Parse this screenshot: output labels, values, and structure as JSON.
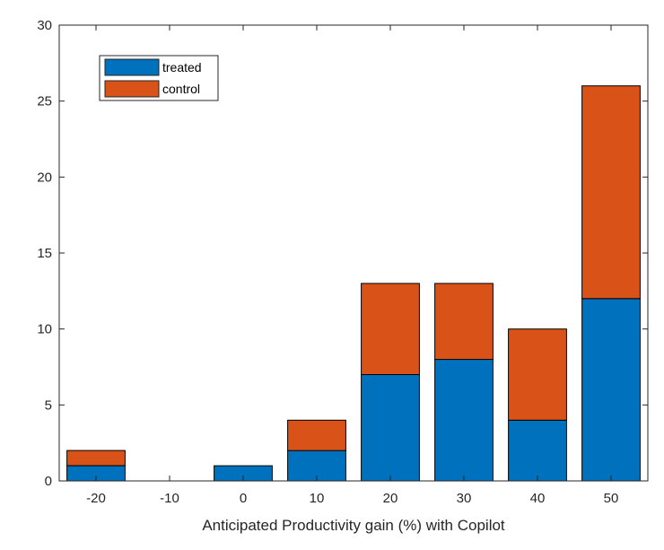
{
  "chart_data": {
    "type": "bar",
    "stacked": true,
    "title": "",
    "xlabel": "Anticipated Productivity gain (%) with Copilot",
    "ylabel": "",
    "categories": [
      "-20",
      "-10",
      "0",
      "10",
      "20",
      "30",
      "40",
      "50"
    ],
    "series": [
      {
        "name": "treated",
        "color": "#0072BD",
        "values": [
          1,
          0,
          1,
          2,
          7,
          8,
          4,
          12
        ]
      },
      {
        "name": "control",
        "color": "#D95319",
        "values": [
          1,
          0,
          0,
          2,
          6,
          5,
          6,
          14
        ]
      }
    ],
    "ylim": [
      0,
      30
    ],
    "yticks": [
      0,
      5,
      10,
      15,
      20,
      25,
      30
    ],
    "grid": false,
    "legend_position": "top-left"
  }
}
